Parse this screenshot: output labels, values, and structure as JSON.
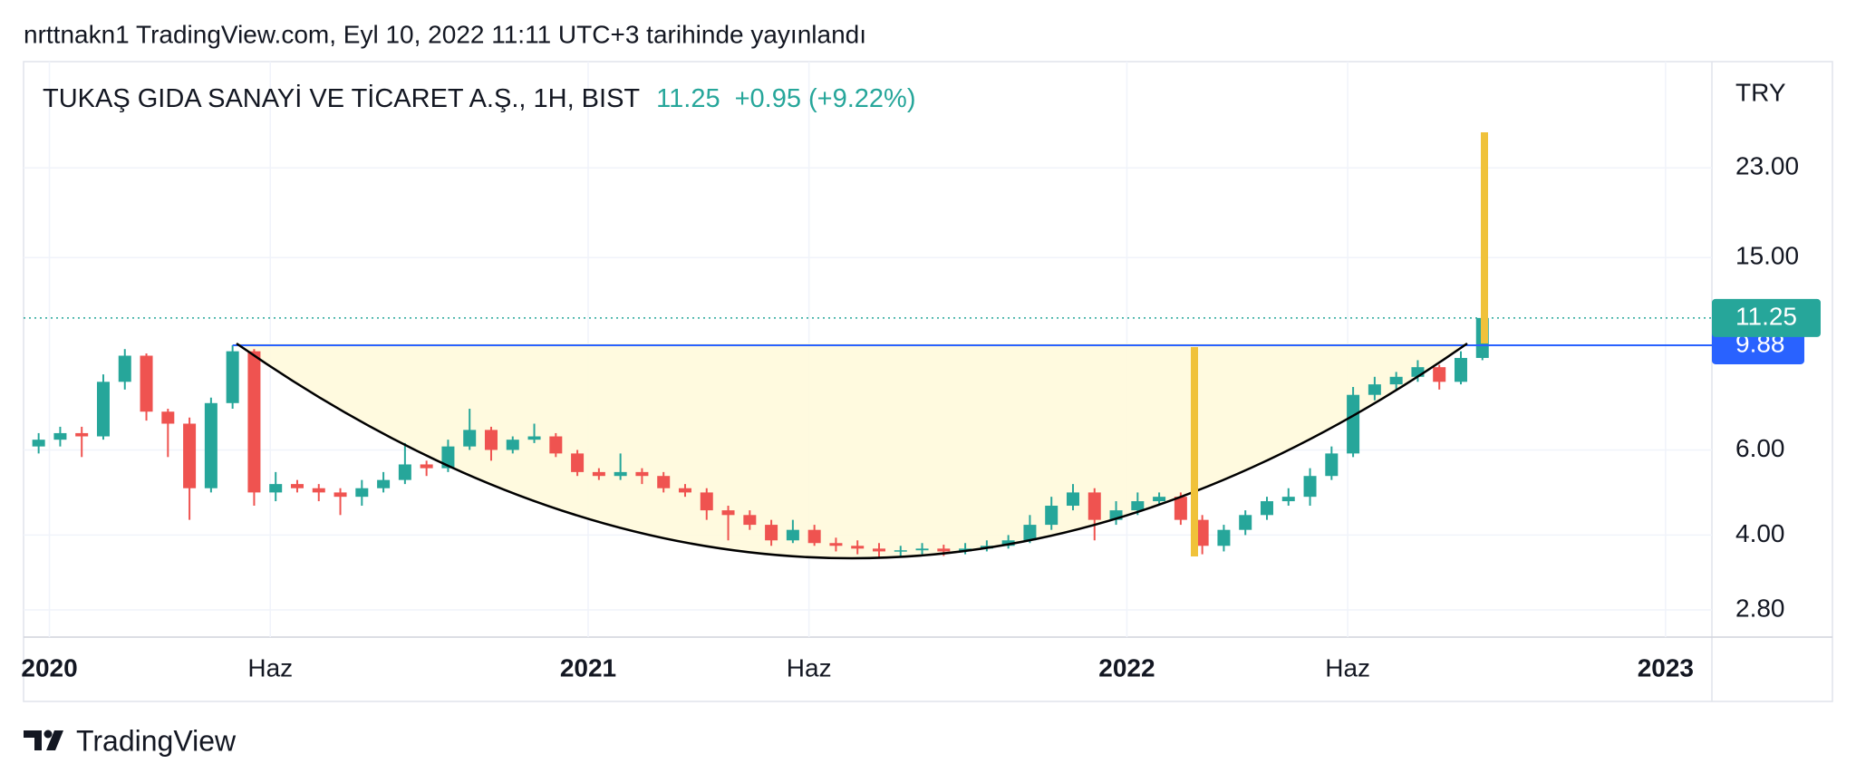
{
  "publisher_line": "nrttnakn1 TradingView.com, Eyl 10, 2022 11:11 UTC+3 tarihinde yayınlandı",
  "footer_brand": "TradingView",
  "chart_data": {
    "type": "candlestick",
    "title": "TUKAŞ GIDA SANAYİ VE TİCARET A.Ş., 1H, BIST",
    "last_price": 11.25,
    "last_price_label": "11.25",
    "change_label": "+0.95 (+9.22%)",
    "currency": "TRY",
    "resistance": 9.88,
    "resistance_color": "#2962ff",
    "up_color": "#26a69a",
    "down_color": "#ef5350",
    "log_scale": true,
    "grid": true,
    "xlim": [
      2019.952,
      2023.086
    ],
    "xticks": [
      2020,
      {
        "value": 2020.41,
        "label": "Haz"
      },
      2021,
      {
        "value": 2021.41,
        "label": "Haz"
      },
      2022,
      {
        "value": 2022.41,
        "label": "Haz"
      },
      2023
    ],
    "ylim": [
      2.46,
      37.5
    ],
    "yticks": [
      {
        "value": 2.8,
        "label": "2.80"
      },
      {
        "value": 4,
        "label": "4.00"
      },
      {
        "value": 6,
        "label": "6.00"
      },
      {
        "value": 15,
        "label": "15.00"
      },
      {
        "value": 23,
        "label": "23.00"
      }
    ],
    "x": [
      2019.98,
      2020.02,
      2020.06,
      2020.1,
      2020.14,
      2020.18,
      2020.22,
      2020.26,
      2020.3,
      2020.34,
      2020.38,
      2020.42,
      2020.46,
      2020.5,
      2020.54,
      2020.58,
      2020.62,
      2020.66,
      2020.7,
      2020.74,
      2020.78,
      2020.82,
      2020.86,
      2020.9,
      2020.94,
      2020.98,
      2021.02,
      2021.06,
      2021.1,
      2021.14,
      2021.18,
      2021.22,
      2021.26,
      2021.3,
      2021.34,
      2021.38,
      2021.42,
      2021.46,
      2021.5,
      2021.54,
      2021.58,
      2021.62,
      2021.66,
      2021.7,
      2021.74,
      2021.78,
      2021.82,
      2021.86,
      2021.9,
      2021.94,
      2021.98,
      2022.02,
      2022.06,
      2022.1,
      2022.14,
      2022.18,
      2022.22,
      2022.26,
      2022.3,
      2022.34,
      2022.38,
      2022.42,
      2022.46,
      2022.5,
      2022.54,
      2022.58,
      2022.62,
      2022.66
    ],
    "open": [
      6.1,
      6.3,
      6.5,
      6.4,
      8.3,
      9.4,
      7.2,
      6.8,
      5.0,
      7.5,
      9.6,
      4.9,
      5.1,
      5.0,
      4.9,
      4.8,
      5.0,
      5.2,
      5.6,
      5.5,
      6.1,
      6.6,
      6.0,
      6.3,
      6.4,
      5.9,
      5.4,
      5.3,
      5.4,
      5.3,
      5.0,
      4.9,
      4.5,
      4.4,
      4.2,
      3.9,
      4.1,
      3.85,
      3.8,
      3.75,
      3.7,
      3.72,
      3.75,
      3.7,
      3.75,
      3.8,
      3.9,
      4.2,
      4.6,
      4.9,
      4.3,
      4.5,
      4.7,
      4.8,
      4.3,
      3.8,
      4.1,
      4.4,
      4.7,
      4.8,
      5.3,
      5.9,
      7.8,
      8.2,
      8.5,
      8.9,
      8.3,
      9.3
    ],
    "high": [
      6.5,
      6.7,
      6.7,
      8.6,
      9.7,
      9.5,
      7.3,
      7.0,
      7.7,
      9.88,
      9.7,
      5.4,
      5.2,
      5.1,
      5.0,
      5.2,
      5.4,
      6.2,
      5.7,
      6.3,
      7.3,
      6.7,
      6.4,
      6.8,
      6.5,
      6.0,
      5.5,
      5.9,
      5.5,
      5.4,
      5.1,
      5.0,
      4.6,
      4.5,
      4.3,
      4.3,
      4.2,
      3.95,
      3.9,
      3.85,
      3.8,
      3.85,
      3.82,
      3.85,
      3.9,
      4.0,
      4.4,
      4.8,
      5.1,
      5.0,
      4.7,
      4.9,
      4.9,
      4.9,
      4.4,
      4.2,
      4.5,
      4.8,
      5.0,
      5.5,
      6.1,
      8.1,
      8.5,
      8.7,
      9.2,
      9.0,
      9.6,
      11.6
    ],
    "low": [
      5.9,
      6.1,
      5.8,
      6.3,
      8.0,
      6.9,
      5.8,
      4.3,
      4.9,
      7.3,
      4.6,
      4.7,
      4.9,
      4.7,
      4.4,
      4.6,
      4.9,
      5.1,
      5.3,
      5.4,
      6.0,
      5.7,
      5.9,
      6.2,
      5.8,
      5.3,
      5.2,
      5.2,
      5.1,
      4.9,
      4.8,
      4.3,
      3.9,
      4.1,
      3.8,
      3.85,
      3.8,
      3.7,
      3.65,
      3.6,
      3.62,
      3.65,
      3.62,
      3.65,
      3.7,
      3.75,
      3.85,
      4.1,
      4.5,
      3.9,
      4.2,
      4.4,
      4.6,
      4.2,
      3.65,
      3.7,
      4.0,
      4.3,
      4.6,
      4.6,
      5.2,
      5.8,
      7.6,
      8.0,
      8.3,
      8.0,
      8.2,
      9.2
    ],
    "close": [
      6.3,
      6.5,
      6.4,
      8.3,
      9.4,
      7.2,
      6.8,
      5.0,
      7.5,
      9.6,
      4.9,
      5.1,
      5.0,
      4.9,
      4.8,
      5.0,
      5.2,
      5.6,
      5.5,
      6.1,
      6.6,
      6.0,
      6.3,
      6.4,
      5.9,
      5.4,
      5.3,
      5.4,
      5.3,
      5.0,
      4.9,
      4.5,
      4.4,
      4.2,
      3.9,
      4.1,
      3.85,
      3.8,
      3.75,
      3.7,
      3.72,
      3.75,
      3.7,
      3.75,
      3.8,
      3.9,
      4.2,
      4.6,
      4.9,
      4.3,
      4.5,
      4.7,
      4.8,
      4.3,
      3.8,
      4.1,
      4.4,
      4.7,
      4.8,
      5.3,
      5.9,
      7.8,
      8.2,
      8.5,
      8.9,
      8.3,
      9.3,
      11.25
    ]
  }
}
